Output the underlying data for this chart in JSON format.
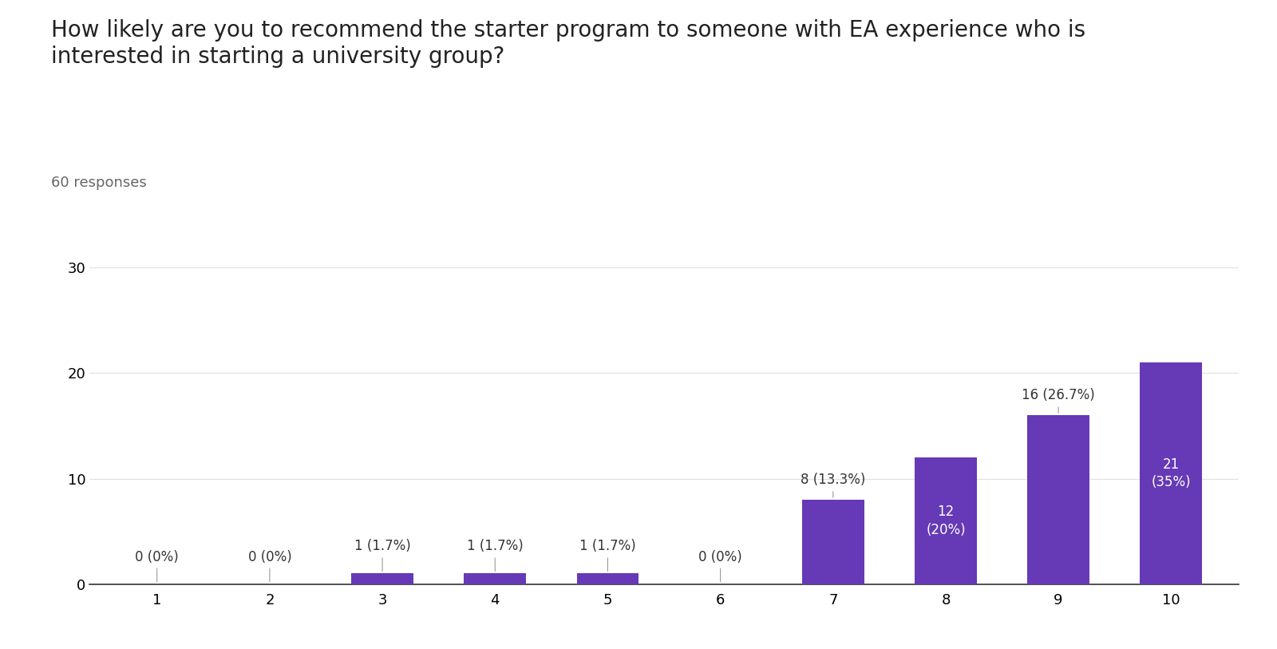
{
  "title": "How likely are you to recommend the starter program to someone with EA experience who is\ninterested in starting a university group?",
  "subtitle": "60 responses",
  "categories": [
    1,
    2,
    3,
    4,
    5,
    6,
    7,
    8,
    9,
    10
  ],
  "values": [
    0,
    0,
    1,
    1,
    1,
    0,
    8,
    12,
    16,
    21
  ],
  "total": 60,
  "bar_color": "#6639b7",
  "label_color_inside": "#ffffff",
  "label_color_outside": "#333333",
  "background_color": "#ffffff",
  "ylim": [
    0,
    32
  ],
  "yticks": [
    0,
    10,
    20,
    30
  ],
  "title_fontsize": 20,
  "subtitle_fontsize": 13,
  "tick_fontsize": 13,
  "label_fontsize": 12,
  "grid_color": "#e0e0e0"
}
